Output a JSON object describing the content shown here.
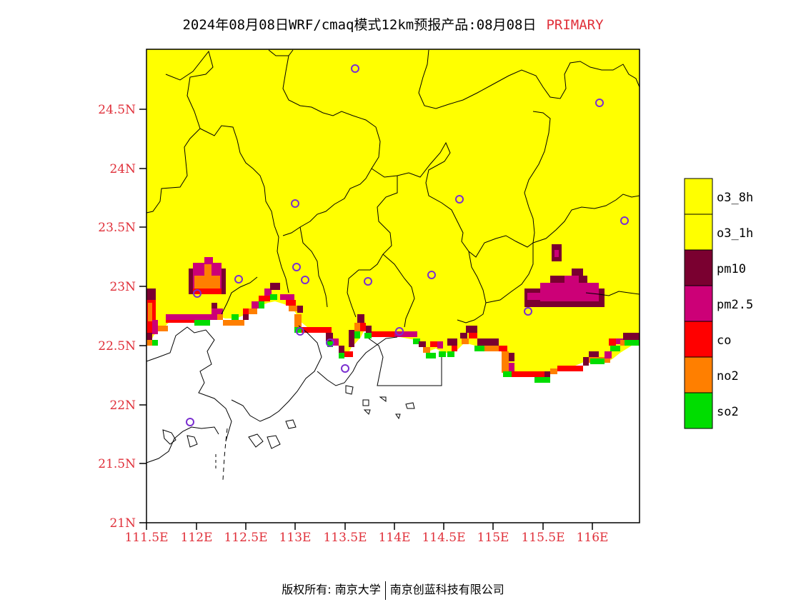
{
  "title": {
    "text": "2024年08月08日WRF/cmaq模式12km预报产品:08月08日",
    "tag": "PRIMARY"
  },
  "axes": {
    "x_ticks": [
      "111.5E",
      "112E",
      "112.5E",
      "113E",
      "113.5E",
      "114E",
      "114.5E",
      "115E",
      "115.5E",
      "116E"
    ],
    "y_ticks": [
      "24.5N",
      "24N",
      "23.5N",
      "23N",
      "22.5N",
      "22N",
      "21.5N",
      "21N"
    ]
  },
  "legend": [
    {
      "label": "o3_8h",
      "color": "#ffff00"
    },
    {
      "label": "o3_1h",
      "color": "#ffff00"
    },
    {
      "label": "pm10",
      "color": "#7a0030"
    },
    {
      "label": "pm2.5",
      "color": "#cc0077"
    },
    {
      "label": "co",
      "color": "#ff0000"
    },
    {
      "label": "no2",
      "color": "#ff7f00"
    },
    {
      "label": "so2",
      "color": "#00dd00"
    }
  ],
  "colors": {
    "ocean": "#ffffff",
    "land_primary": "#ffff00",
    "tick_text": "#e0303a",
    "station_marker": "#7a2fd0"
  },
  "footer": {
    "left": "版权所有: 南京大学",
    "right": "南京创蓝科技有限公司"
  }
}
